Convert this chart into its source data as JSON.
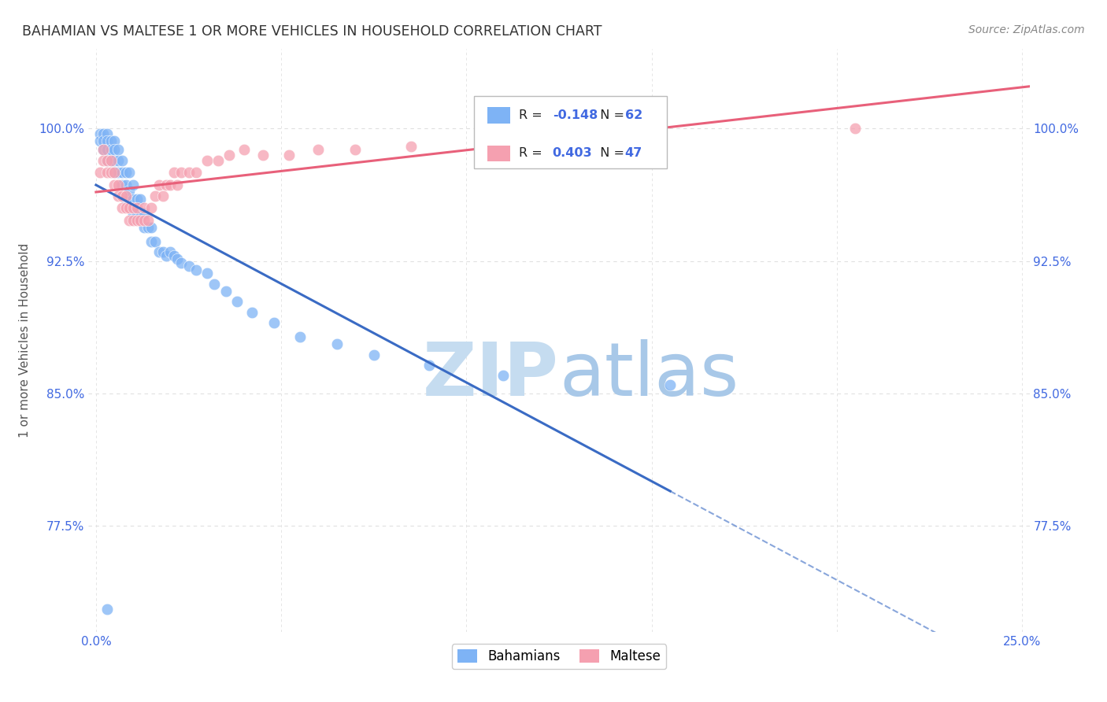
{
  "title": "BAHAMIAN VS MALTESE 1 OR MORE VEHICLES IN HOUSEHOLD CORRELATION CHART",
  "source": "Source: ZipAtlas.com",
  "ylabel": "1 or more Vehicles in Household",
  "ytick_labels": [
    "77.5%",
    "85.0%",
    "92.5%",
    "100.0%"
  ],
  "ytick_values": [
    0.775,
    0.85,
    0.925,
    1.0
  ],
  "xlim": [
    -0.002,
    0.252
  ],
  "ylim": [
    0.715,
    1.045
  ],
  "legend_blue_label": "Bahamians",
  "legend_pink_label": "Maltese",
  "blue_R": "-0.148",
  "blue_N": "62",
  "pink_R": "0.403",
  "pink_N": "47",
  "bahamian_x": [
    0.001,
    0.001,
    0.002,
    0.002,
    0.002,
    0.003,
    0.003,
    0.003,
    0.003,
    0.004,
    0.004,
    0.004,
    0.005,
    0.005,
    0.005,
    0.005,
    0.006,
    0.006,
    0.006,
    0.007,
    0.007,
    0.007,
    0.008,
    0.008,
    0.008,
    0.009,
    0.009,
    0.01,
    0.01,
    0.01,
    0.011,
    0.011,
    0.012,
    0.012,
    0.013,
    0.013,
    0.014,
    0.015,
    0.015,
    0.016,
    0.017,
    0.018,
    0.019,
    0.02,
    0.021,
    0.022,
    0.023,
    0.025,
    0.027,
    0.03,
    0.032,
    0.035,
    0.038,
    0.042,
    0.048,
    0.055,
    0.065,
    0.075,
    0.09,
    0.11,
    0.155,
    0.003
  ],
  "bahamian_y": [
    0.997,
    0.993,
    0.997,
    0.993,
    0.988,
    0.997,
    0.993,
    0.988,
    0.982,
    0.993,
    0.988,
    0.982,
    0.993,
    0.988,
    0.982,
    0.975,
    0.988,
    0.982,
    0.975,
    0.982,
    0.975,
    0.968,
    0.975,
    0.968,
    0.96,
    0.975,
    0.965,
    0.968,
    0.96,
    0.952,
    0.96,
    0.952,
    0.96,
    0.95,
    0.952,
    0.944,
    0.944,
    0.944,
    0.936,
    0.936,
    0.93,
    0.93,
    0.928,
    0.93,
    0.928,
    0.926,
    0.924,
    0.922,
    0.92,
    0.918,
    0.912,
    0.908,
    0.902,
    0.896,
    0.89,
    0.882,
    0.878,
    0.872,
    0.866,
    0.86,
    0.855,
    0.728
  ],
  "maltese_x": [
    0.001,
    0.002,
    0.002,
    0.003,
    0.003,
    0.004,
    0.004,
    0.005,
    0.005,
    0.006,
    0.006,
    0.007,
    0.007,
    0.008,
    0.008,
    0.009,
    0.009,
    0.01,
    0.01,
    0.011,
    0.011,
    0.012,
    0.013,
    0.013,
    0.014,
    0.015,
    0.016,
    0.017,
    0.018,
    0.019,
    0.02,
    0.021,
    0.022,
    0.023,
    0.025,
    0.027,
    0.03,
    0.033,
    0.036,
    0.04,
    0.045,
    0.052,
    0.06,
    0.07,
    0.085,
    0.115,
    0.205
  ],
  "maltese_y": [
    0.975,
    0.988,
    0.982,
    0.982,
    0.975,
    0.982,
    0.975,
    0.975,
    0.968,
    0.968,
    0.962,
    0.962,
    0.955,
    0.962,
    0.955,
    0.955,
    0.948,
    0.955,
    0.948,
    0.955,
    0.948,
    0.948,
    0.955,
    0.948,
    0.948,
    0.955,
    0.962,
    0.968,
    0.962,
    0.968,
    0.968,
    0.975,
    0.968,
    0.975,
    0.975,
    0.975,
    0.982,
    0.982,
    0.985,
    0.988,
    0.985,
    0.985,
    0.988,
    0.988,
    0.99,
    0.992,
    1.0
  ],
  "blue_color": "#7EB3F5",
  "pink_color": "#F5A0B0",
  "blue_line_color": "#3A6BC4",
  "pink_line_color": "#E8607A",
  "grid_color": "#E0E0E0",
  "title_color": "#333333",
  "axis_label_color": "#4169E1",
  "ylabel_color": "#555555",
  "source_color": "#888888",
  "watermark_zip_color": "#C5DCF0",
  "watermark_atlas_color": "#A8C8E8"
}
